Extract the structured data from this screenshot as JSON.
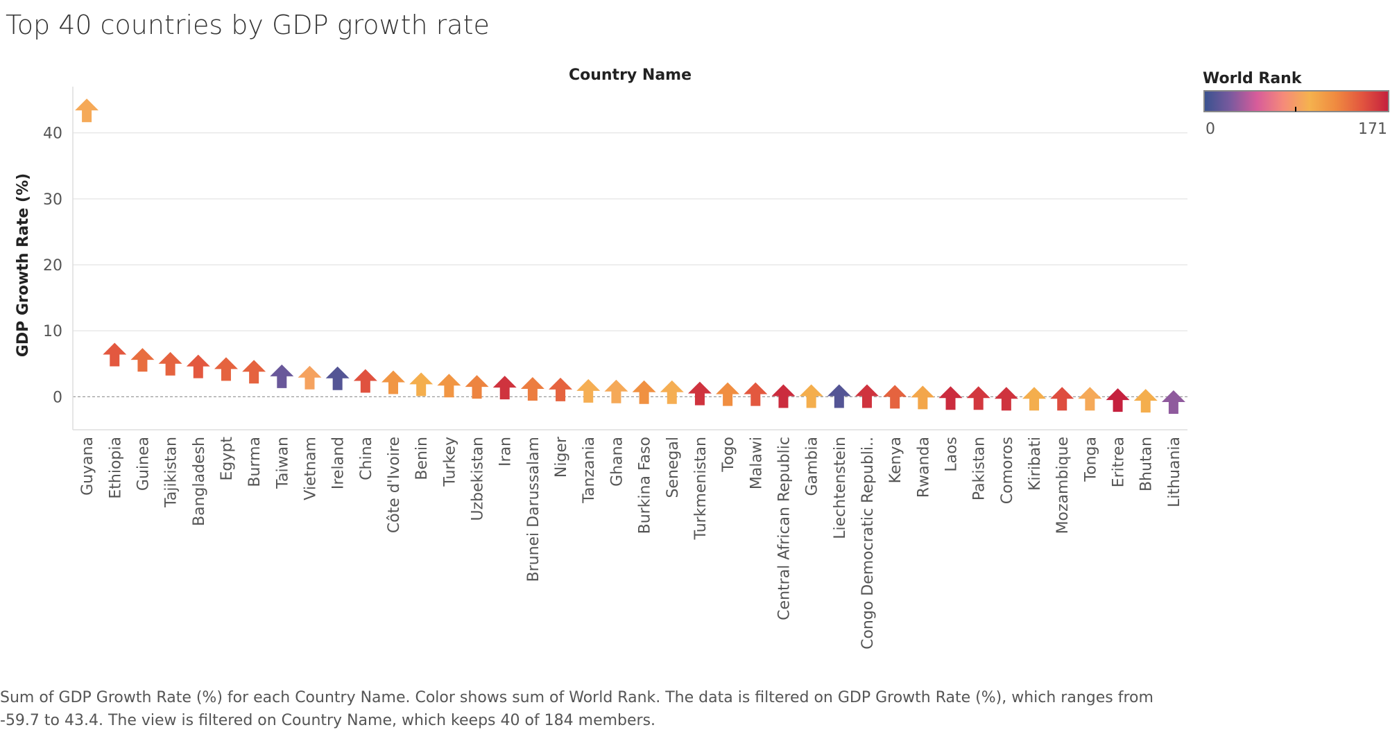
{
  "title": "Top 40 countries by GDP growth rate",
  "caption": "Sum of GDP Growth Rate (%) for each Country Name.  Color shows sum of World Rank. The data is filtered on GDP Growth Rate (%), which ranges from -59.7 to 43.4. The view is filtered on Country Name, which keeps 40 of 184 members.",
  "chart_data": {
    "type": "scatter",
    "marker": "arrow-up",
    "title": "Top 40 countries by GDP growth rate",
    "xlabel": "Country Name",
    "ylabel": "GDP Growth Rate (%)",
    "ylim": [
      -5,
      47
    ],
    "yticks": [
      0,
      10,
      20,
      30,
      40
    ],
    "grid": true,
    "zero_line": "dashed",
    "categories": [
      "Guyana",
      "Ethiopia",
      "Guinea",
      "Tajikistan",
      "Bangladesh",
      "Egypt",
      "Burma",
      "Taiwan",
      "Vietnam",
      "Ireland",
      "China",
      "Côte d'Ivoire",
      "Benin",
      "Turkey",
      "Uzbekistan",
      "Iran",
      "Brunei Darussalam",
      "Niger",
      "Tanzania",
      "Ghana",
      "Burkina Faso",
      "Senegal",
      "Turkmenistan",
      "Togo",
      "Malawi",
      "Central African Republic",
      "Gambia",
      "Liechtenstein",
      "Congo Democratic Republi..",
      "Kenya",
      "Rwanda",
      "Laos",
      "Pakistan",
      "Comoros",
      "Kiribati",
      "Mozambique",
      "Tonga",
      "Eritrea",
      "Bhutan",
      "Lithuania"
    ],
    "values": [
      43.4,
      6.4,
      5.6,
      5.0,
      4.6,
      4.2,
      3.8,
      3.1,
      2.9,
      2.8,
      2.4,
      2.2,
      1.9,
      1.7,
      1.5,
      1.4,
      1.2,
      1.1,
      0.9,
      0.8,
      0.7,
      0.7,
      0.5,
      0.4,
      0.4,
      0.1,
      0.1,
      0.1,
      0.1,
      0.0,
      -0.1,
      -0.2,
      -0.2,
      -0.3,
      -0.3,
      -0.3,
      -0.3,
      -0.5,
      -0.6,
      -0.8
    ],
    "color_values": [
      92,
      145,
      135,
      140,
      145,
      140,
      140,
      18,
      88,
      10,
      148,
      115,
      100,
      115,
      125,
      162,
      128,
      140,
      95,
      92,
      118,
      95,
      162,
      120,
      145,
      165,
      100,
      10,
      162,
      140,
      105,
      165,
      160,
      162,
      100,
      150,
      92,
      170,
      100,
      30
    ],
    "color_legend": {
      "title": "World Rank",
      "min": 0,
      "max": 171,
      "colors": [
        "#39528f",
        "#7a5a9e",
        "#d75c9a",
        "#f58a7a",
        "#f5b24e",
        "#ef8a40",
        "#e2553f",
        "#c41f3e"
      ]
    }
  }
}
